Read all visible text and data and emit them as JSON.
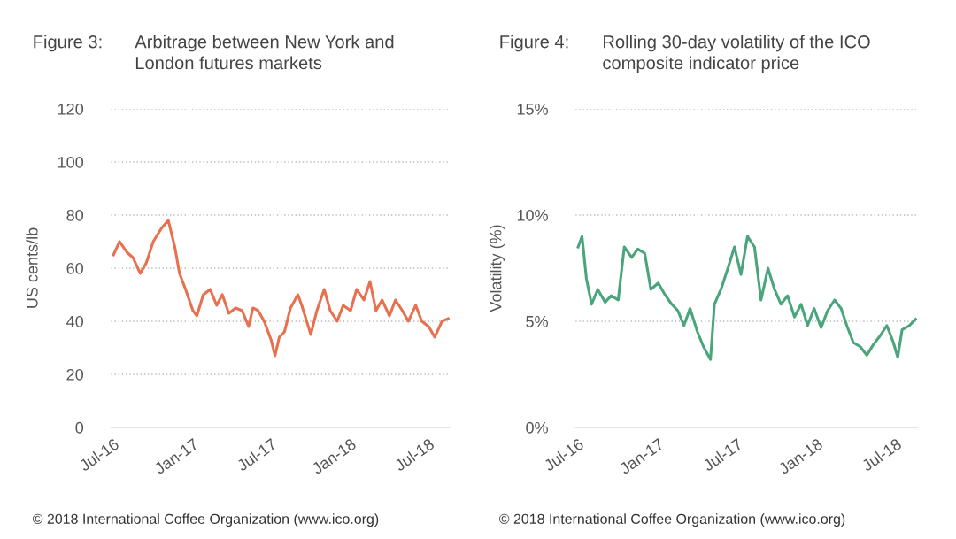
{
  "chart_data": [
    {
      "type": "line",
      "title": "Figure 3: Arbitrage between New York and London futures markets",
      "ylabel": "US cents/lb",
      "x": [
        "2016-07-01",
        "2016-07-15",
        "2016-08-01",
        "2016-08-15",
        "2016-09-01",
        "2016-09-15",
        "2016-10-01",
        "2016-10-20",
        "2016-11-05",
        "2016-11-20",
        "2016-12-01",
        "2016-12-15",
        "2017-01-01",
        "2017-01-10",
        "2017-01-25",
        "2017-02-10",
        "2017-02-25",
        "2017-03-10",
        "2017-03-25",
        "2017-04-10",
        "2017-04-25",
        "2017-05-10",
        "2017-05-20",
        "2017-06-01",
        "2017-06-15",
        "2017-07-01",
        "2017-07-10",
        "2017-07-20",
        "2017-08-01",
        "2017-08-15",
        "2017-09-01",
        "2017-09-10",
        "2017-10-01",
        "2017-10-15",
        "2017-11-01",
        "2017-11-15",
        "2017-12-01",
        "2017-12-15",
        "2018-01-01",
        "2018-01-15",
        "2018-02-01",
        "2018-02-15",
        "2018-03-01",
        "2018-03-15",
        "2018-04-01",
        "2018-04-15",
        "2018-05-01",
        "2018-05-15",
        "2018-06-01",
        "2018-06-15",
        "2018-07-01",
        "2018-07-15",
        "2018-08-01",
        "2018-08-15"
      ],
      "series": [
        {
          "color": "#e8704f",
          "values": [
            65,
            70,
            66,
            64,
            58,
            62,
            70,
            75,
            78,
            68,
            58,
            52,
            44,
            42,
            50,
            52,
            46,
            50,
            43,
            45,
            44,
            38,
            45,
            44,
            40,
            33,
            27,
            34,
            36,
            45,
            50,
            46,
            35,
            44,
            52,
            44,
            40,
            46,
            44,
            52,
            48,
            55,
            44,
            48,
            42,
            48,
            44,
            40,
            46,
            40,
            38,
            34,
            40,
            41
          ]
        }
      ],
      "xlim": [
        "2016-06-25",
        "2018-08-20"
      ],
      "xticks": [
        {
          "value": "2016-07-01",
          "label": "Jul-16"
        },
        {
          "value": "2017-01-01",
          "label": "Jan-17"
        },
        {
          "value": "2017-07-01",
          "label": "Jul-17"
        },
        {
          "value": "2018-01-01",
          "label": "Jan-18"
        },
        {
          "value": "2018-07-01",
          "label": "Jul-18"
        }
      ],
      "ylim": [
        0,
        120
      ],
      "yticks": [
        0,
        20,
        40,
        60,
        80,
        100,
        120
      ],
      "grid": "y",
      "legend": false,
      "annotations": [
        "© 2018 International Coffee Organization (www.ico.org)"
      ]
    },
    {
      "type": "line",
      "title": "Figure 4: Rolling 30-day volatility of the ICO composite indicator price",
      "ylabel": "Volatility (%)",
      "x": [
        "2016-07-01",
        "2016-07-10",
        "2016-07-20",
        "2016-08-01",
        "2016-08-15",
        "2016-09-01",
        "2016-09-15",
        "2016-10-01",
        "2016-10-15",
        "2016-11-01",
        "2016-11-15",
        "2016-12-01",
        "2016-12-15",
        "2017-01-01",
        "2017-01-15",
        "2017-02-01",
        "2017-02-15",
        "2017-03-01",
        "2017-03-15",
        "2017-04-01",
        "2017-04-15",
        "2017-05-01",
        "2017-05-10",
        "2017-05-25",
        "2017-06-10",
        "2017-06-25",
        "2017-07-10",
        "2017-07-25",
        "2017-08-10",
        "2017-08-25",
        "2017-09-10",
        "2017-09-25",
        "2017-10-10",
        "2017-10-25",
        "2017-11-10",
        "2017-11-25",
        "2017-12-10",
        "2017-12-25",
        "2018-01-10",
        "2018-01-25",
        "2018-02-10",
        "2018-02-25",
        "2018-03-10",
        "2018-03-25",
        "2018-04-10",
        "2018-04-25",
        "2018-05-10",
        "2018-05-25",
        "2018-06-10",
        "2018-06-25",
        "2018-07-05",
        "2018-07-15",
        "2018-08-01",
        "2018-08-15"
      ],
      "series": [
        {
          "color": "#4aa57c",
          "values": [
            8.5,
            9.0,
            7.0,
            5.8,
            6.5,
            5.9,
            6.2,
            6.0,
            8.5,
            8.0,
            8.4,
            8.2,
            6.5,
            6.8,
            6.3,
            5.8,
            5.5,
            4.8,
            5.6,
            4.5,
            3.8,
            3.2,
            5.8,
            6.5,
            7.5,
            8.5,
            7.2,
            9.0,
            8.5,
            6.0,
            7.5,
            6.5,
            5.8,
            6.2,
            5.2,
            5.8,
            4.8,
            5.6,
            4.7,
            5.5,
            6.0,
            5.6,
            4.8,
            4.0,
            3.8,
            3.4,
            3.9,
            4.3,
            4.8,
            4.0,
            3.3,
            4.6,
            4.8,
            5.1
          ]
        }
      ],
      "xlim": [
        "2016-06-25",
        "2018-08-20"
      ],
      "xticks": [
        {
          "value": "2016-07-01",
          "label": "Jul-16"
        },
        {
          "value": "2017-01-01",
          "label": "Jan-17"
        },
        {
          "value": "2017-07-01",
          "label": "Jul-17"
        },
        {
          "value": "2018-01-01",
          "label": "Jan-18"
        },
        {
          "value": "2018-07-01",
          "label": "Jul-18"
        }
      ],
      "ylim": [
        0,
        15
      ],
      "yticks": [
        {
          "value": 0,
          "label": "0%"
        },
        {
          "value": 5,
          "label": "5%"
        },
        {
          "value": 10,
          "label": "10%"
        },
        {
          "value": 15,
          "label": "15%"
        }
      ],
      "grid": "y",
      "legend": false,
      "annotations": [
        "© 2018 International Coffee Organization (www.ico.org)"
      ]
    }
  ]
}
